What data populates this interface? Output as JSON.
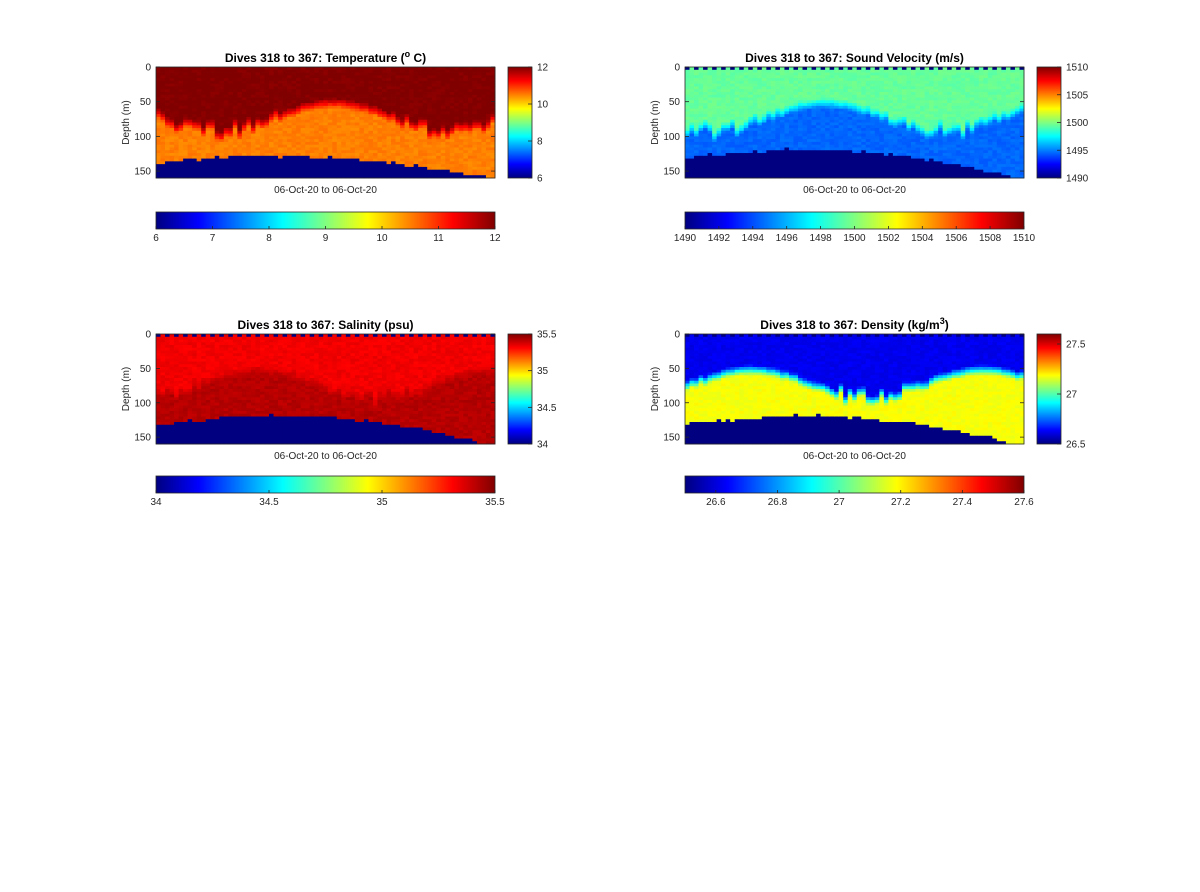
{
  "colormap": "jet",
  "chart_data": [
    {
      "type": "heatmap",
      "variable": "temperature",
      "title": "Dives 318 to 367: Temperature (",
      "title_sup": "o",
      "title_end": " C)",
      "xlabel": "06-Oct-20 to 06-Oct-20",
      "ylabel": "Depth (m)",
      "ylim": [
        160,
        0
      ],
      "yticks": [
        "0",
        "50",
        "100",
        "150"
      ],
      "clim": [
        6,
        12
      ],
      "cbar_ticks": [
        "12",
        "10",
        "8",
        "6"
      ],
      "hcbar_ticks": [
        "6",
        "7",
        "8",
        "9",
        "10",
        "11",
        "12"
      ],
      "profile": {
        "surface": 12,
        "layer1_bottom_range": [
          45,
          95
        ],
        "layer2": 10.5,
        "bottom_value": 6,
        "bottom_start_range": [
          124,
          160
        ]
      }
    },
    {
      "type": "heatmap",
      "variable": "sound_velocity",
      "title": "Dives 318 to 367: Sound Velocity (m/s)",
      "title_sup": "",
      "title_end": "",
      "xlabel": "06-Oct-20 to 06-Oct-20",
      "ylabel": "Depth (m)",
      "ylim": [
        160,
        0
      ],
      "yticks": [
        "0",
        "50",
        "100",
        "150"
      ],
      "clim": [
        1490,
        1510
      ],
      "cbar_ticks": [
        "1510",
        "1505",
        "1500",
        "1495",
        "1490"
      ],
      "hcbar_ticks": [
        "1490",
        "1492",
        "1494",
        "1496",
        "1498",
        "1500",
        "1502",
        "1504",
        "1506",
        "1508",
        "1510"
      ],
      "profile": {
        "surface": 1499.5,
        "layer1_bottom_range": [
          45,
          95
        ],
        "layer2": 1494.5,
        "bottom_value": 1490,
        "bottom_start_range": [
          114,
          160
        ]
      }
    },
    {
      "type": "heatmap",
      "variable": "salinity",
      "title": "Dives 318 to 367: Salinity (psu)",
      "title_sup": "",
      "title_end": "",
      "xlabel": "06-Oct-20 to 06-Oct-20",
      "ylabel": "Depth (m)",
      "ylim": [
        160,
        0
      ],
      "yticks": [
        "0",
        "50",
        "100",
        "150"
      ],
      "clim": [
        34,
        35.5
      ],
      "cbar_ticks": [
        "35.5",
        "35",
        "34.5",
        "34"
      ],
      "hcbar_ticks": [
        "34",
        "34.5",
        "35",
        "35.5"
      ],
      "profile": {
        "surface": 35.33,
        "layer1_bottom_range": [
          45,
          95
        ],
        "layer2": 35.42,
        "bottom_value": 34,
        "bottom_start_range": [
          114,
          160
        ]
      }
    },
    {
      "type": "heatmap",
      "variable": "density",
      "title": "Dives 318 to 367: Density (kg/m",
      "title_sup": "3",
      "title_end": ")",
      "xlabel": "06-Oct-20 to 06-Oct-20",
      "ylabel": "Depth (m)",
      "ylim": [
        160,
        0
      ],
      "yticks": [
        "0",
        "50",
        "100",
        "150"
      ],
      "clim": [
        26.5,
        27.6
      ],
      "cbar_ticks": [
        "27.5",
        "27",
        "26.5"
      ],
      "hcbar_ticks": [
        "26.6",
        "26.8",
        "27",
        "27.2",
        "27.4",
        "27.6"
      ],
      "profile": {
        "surface": 26.62,
        "layer1_bottom_range": [
          45,
          95
        ],
        "layer2": 27.18,
        "bottom_value": 26.5,
        "bottom_start_range": [
          114,
          160
        ]
      }
    }
  ]
}
